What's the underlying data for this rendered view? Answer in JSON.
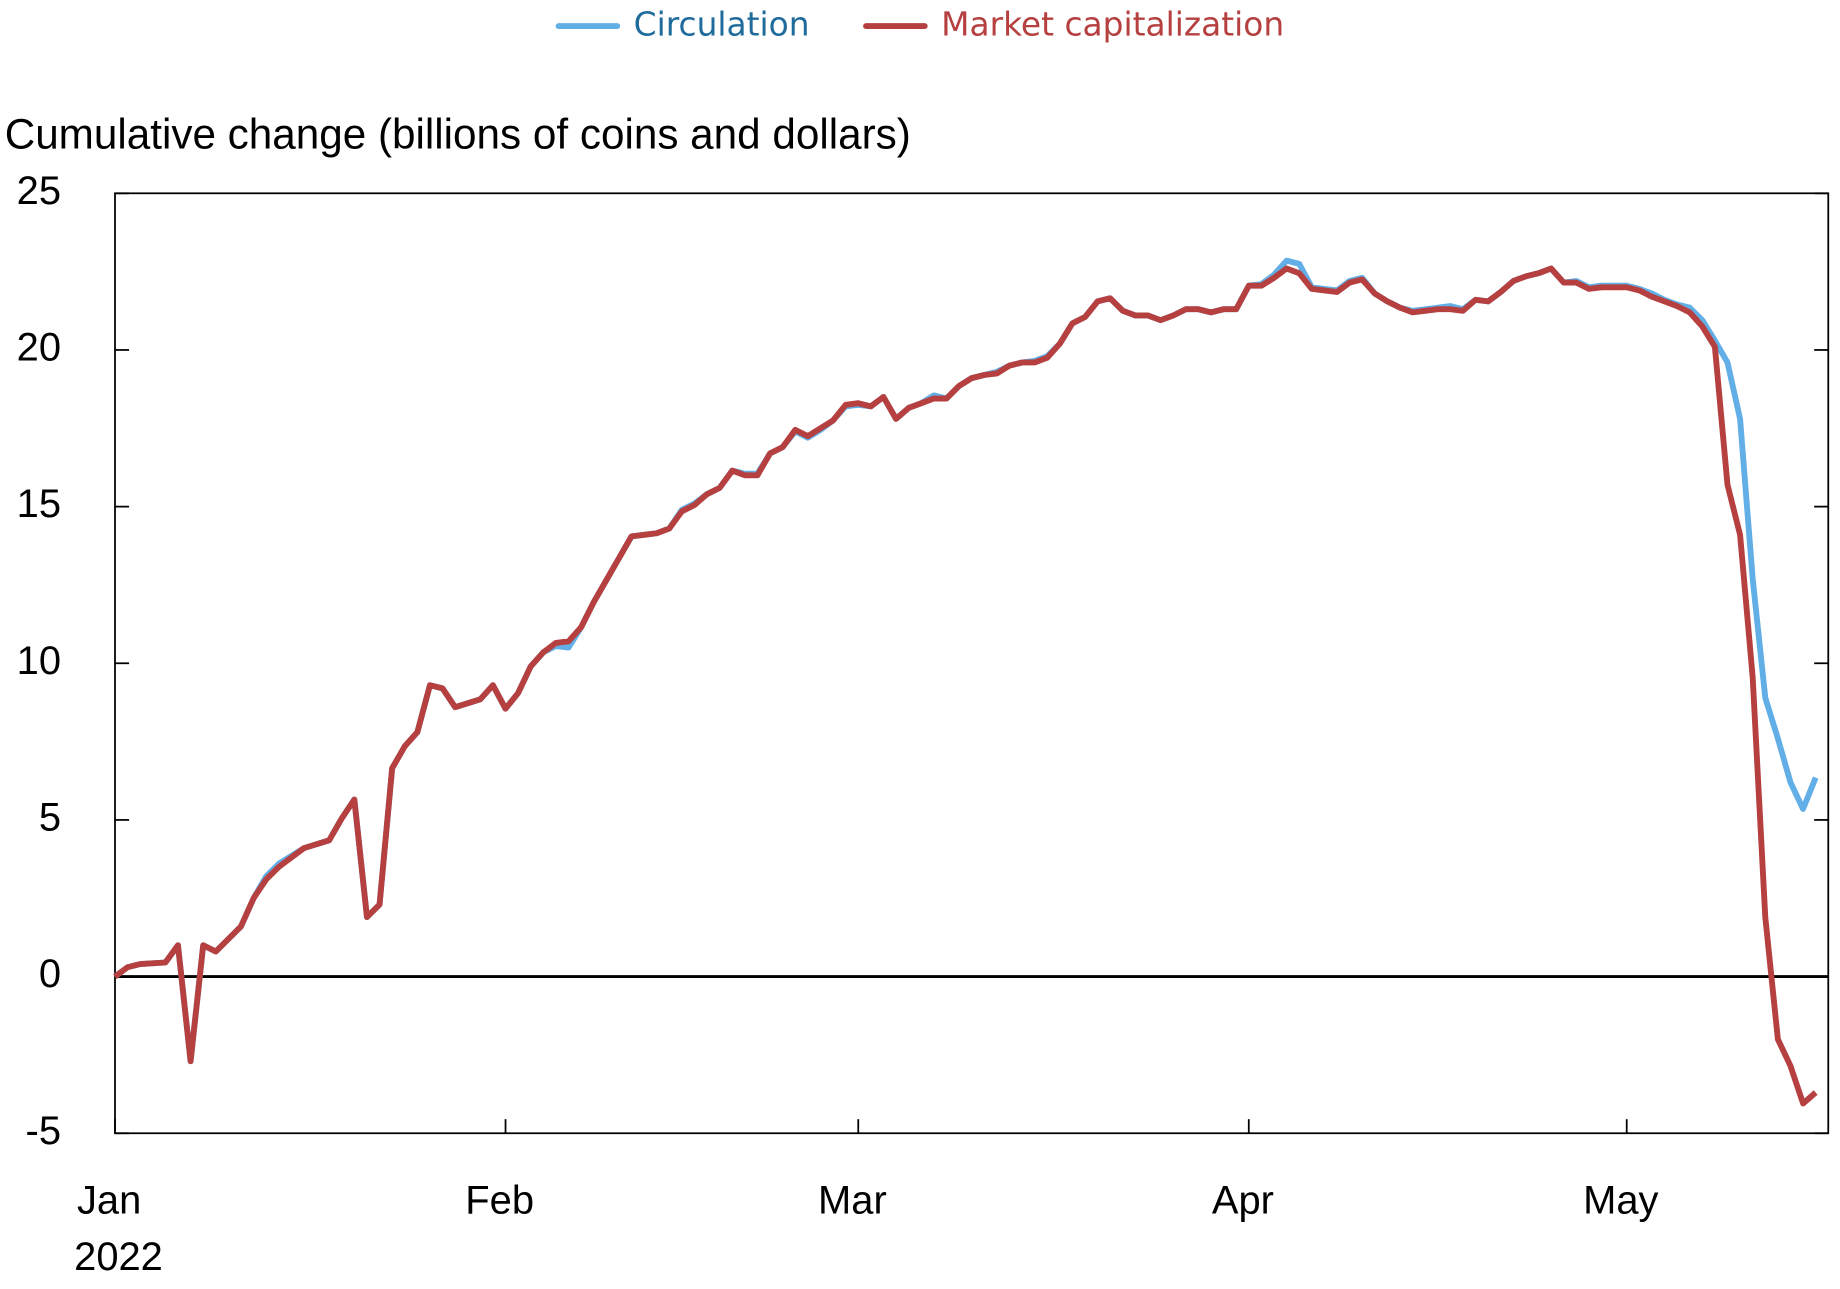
{
  "chart_data": {
    "type": "line",
    "y_axis_label": "Cumulative change (billions of coins and dollars)",
    "x": [
      "2022-01-01",
      "2022-01-02",
      "2022-01-03",
      "2022-01-05",
      "2022-01-06",
      "2022-01-07",
      "2022-01-08",
      "2022-01-09",
      "2022-01-11",
      "2022-01-12",
      "2022-01-13",
      "2022-01-14",
      "2022-01-16",
      "2022-01-18",
      "2022-01-19",
      "2022-01-20",
      "2022-01-21",
      "2022-01-22",
      "2022-01-23",
      "2022-01-24",
      "2022-01-25",
      "2022-01-26",
      "2022-01-27",
      "2022-01-28",
      "2022-01-30",
      "2022-01-31",
      "2022-02-01",
      "2022-02-02",
      "2022-02-03",
      "2022-02-04",
      "2022-02-05",
      "2022-02-06",
      "2022-02-07",
      "2022-02-08",
      "2022-02-09",
      "2022-02-10",
      "2022-02-11",
      "2022-02-12",
      "2022-02-13",
      "2022-02-14",
      "2022-02-15",
      "2022-02-16",
      "2022-02-17",
      "2022-02-18",
      "2022-02-19",
      "2022-02-20",
      "2022-02-21",
      "2022-02-22",
      "2022-02-23",
      "2022-02-24",
      "2022-02-25",
      "2022-02-26",
      "2022-02-27",
      "2022-02-28",
      "2022-03-01",
      "2022-03-02",
      "2022-03-03",
      "2022-03-04",
      "2022-03-05",
      "2022-03-06",
      "2022-03-07",
      "2022-03-08",
      "2022-03-09",
      "2022-03-10",
      "2022-03-11",
      "2022-03-12",
      "2022-03-13",
      "2022-03-14",
      "2022-03-15",
      "2022-03-16",
      "2022-03-17",
      "2022-03-18",
      "2022-03-19",
      "2022-03-20",
      "2022-03-21",
      "2022-03-22",
      "2022-03-23",
      "2022-03-24",
      "2022-03-25",
      "2022-03-26",
      "2022-03-27",
      "2022-03-28",
      "2022-03-29",
      "2022-03-30",
      "2022-03-31",
      "2022-04-01",
      "2022-04-02",
      "2022-04-03",
      "2022-04-04",
      "2022-04-05",
      "2022-04-06",
      "2022-04-07",
      "2022-04-08",
      "2022-04-09",
      "2022-04-10",
      "2022-04-11",
      "2022-04-12",
      "2022-04-13",
      "2022-04-14",
      "2022-04-15",
      "2022-04-16",
      "2022-04-17",
      "2022-04-18",
      "2022-04-19",
      "2022-04-20",
      "2022-04-21",
      "2022-04-22",
      "2022-04-23",
      "2022-04-24",
      "2022-04-25",
      "2022-04-26",
      "2022-04-27",
      "2022-04-28",
      "2022-04-29",
      "2022-04-30",
      "2022-05-01",
      "2022-05-02",
      "2022-05-03",
      "2022-05-04",
      "2022-05-05",
      "2022-05-06",
      "2022-05-07",
      "2022-05-08",
      "2022-05-09",
      "2022-05-10",
      "2022-05-11",
      "2022-05-12",
      "2022-05-13",
      "2022-05-14",
      "2022-05-15",
      "2022-05-16"
    ],
    "series": [
      {
        "name": "Circulation",
        "color": "#62aee6",
        "text_color": "#1f6b9c",
        "values": [
          0,
          0.3,
          0.4,
          0.45,
          1.0,
          -2.7,
          1.0,
          0.8,
          1.6,
          2.5,
          3.2,
          3.6,
          4.1,
          4.35,
          5.05,
          5.65,
          1.9,
          2.3,
          6.65,
          7.35,
          7.8,
          9.3,
          9.2,
          8.6,
          8.85,
          9.3,
          8.55,
          9.05,
          9.9,
          10.35,
          10.55,
          10.5,
          11.15,
          11.95,
          12.65,
          13.35,
          14.05,
          14.1,
          14.15,
          14.3,
          14.9,
          15.1,
          15.4,
          15.6,
          16.15,
          16.05,
          16.05,
          16.7,
          16.9,
          17.4,
          17.2,
          17.45,
          17.75,
          18.2,
          18.25,
          18.2,
          18.5,
          17.8,
          18.15,
          18.3,
          18.55,
          18.45,
          18.85,
          19.1,
          19.2,
          19.3,
          19.5,
          19.6,
          19.65,
          19.8,
          20.2,
          20.85,
          21.05,
          21.55,
          21.65,
          21.25,
          21.1,
          21.1,
          20.95,
          21.1,
          21.3,
          21.3,
          21.2,
          21.3,
          21.3,
          22.05,
          22.1,
          22.4,
          22.85,
          22.75,
          22.0,
          21.95,
          21.9,
          22.2,
          22.3,
          21.8,
          21.55,
          21.35,
          21.25,
          21.3,
          21.35,
          21.4,
          21.3,
          21.6,
          21.55,
          21.85,
          22.2,
          22.35,
          22.45,
          22.6,
          22.15,
          22.2,
          22.0,
          22.05,
          22.05,
          22.05,
          21.95,
          21.8,
          21.6,
          21.45,
          21.35,
          20.95,
          20.3,
          19.6,
          17.8,
          12.7,
          8.9,
          7.6,
          6.2,
          5.35,
          6.35
        ]
      },
      {
        "name": "Market capitalization",
        "color": "#b5403f",
        "text_color": "#b5403f",
        "values": [
          0,
          0.3,
          0.4,
          0.45,
          1.0,
          -2.7,
          1.0,
          0.8,
          1.6,
          2.5,
          3.1,
          3.5,
          4.1,
          4.35,
          5.05,
          5.65,
          1.9,
          2.3,
          6.65,
          7.35,
          7.8,
          9.3,
          9.2,
          8.6,
          8.85,
          9.3,
          8.55,
          9.05,
          9.9,
          10.35,
          10.65,
          10.7,
          11.15,
          11.95,
          12.65,
          13.35,
          14.05,
          14.1,
          14.15,
          14.3,
          14.85,
          15.05,
          15.4,
          15.6,
          16.15,
          16.0,
          16.0,
          16.7,
          16.9,
          17.45,
          17.25,
          17.5,
          17.75,
          18.25,
          18.3,
          18.2,
          18.5,
          17.8,
          18.15,
          18.3,
          18.45,
          18.45,
          18.85,
          19.1,
          19.2,
          19.25,
          19.5,
          19.6,
          19.6,
          19.75,
          20.2,
          20.85,
          21.05,
          21.55,
          21.65,
          21.25,
          21.1,
          21.1,
          20.95,
          21.1,
          21.3,
          21.3,
          21.2,
          21.3,
          21.3,
          22.05,
          22.05,
          22.3,
          22.6,
          22.45,
          21.95,
          21.9,
          21.85,
          22.15,
          22.25,
          21.8,
          21.55,
          21.35,
          21.2,
          21.25,
          21.3,
          21.3,
          21.25,
          21.6,
          21.55,
          21.85,
          22.2,
          22.35,
          22.45,
          22.6,
          22.15,
          22.15,
          21.95,
          22.0,
          22.0,
          22.0,
          21.9,
          21.7,
          21.55,
          21.4,
          21.2,
          20.75,
          20.1,
          15.7,
          14.1,
          9.55,
          1.9,
          -2.0,
          -2.85,
          -4.05,
          -3.7
        ]
      }
    ],
    "xlim": [
      "2022-01-01",
      "2022-05-17"
    ],
    "xticks": [
      {
        "value": "2022-01-01",
        "label": "Jan"
      },
      {
        "value": "2022-02-01",
        "label": "Feb"
      },
      {
        "value": "2022-03-01",
        "label": "Mar"
      },
      {
        "value": "2022-04-01",
        "label": "Apr"
      },
      {
        "value": "2022-05-01",
        "label": "May"
      }
    ],
    "x_year_label": "2022",
    "ylim": [
      -5,
      25
    ],
    "yticks": [
      -5,
      0,
      5,
      10,
      15,
      20,
      25
    ],
    "zero_line": true,
    "legend": "top"
  }
}
